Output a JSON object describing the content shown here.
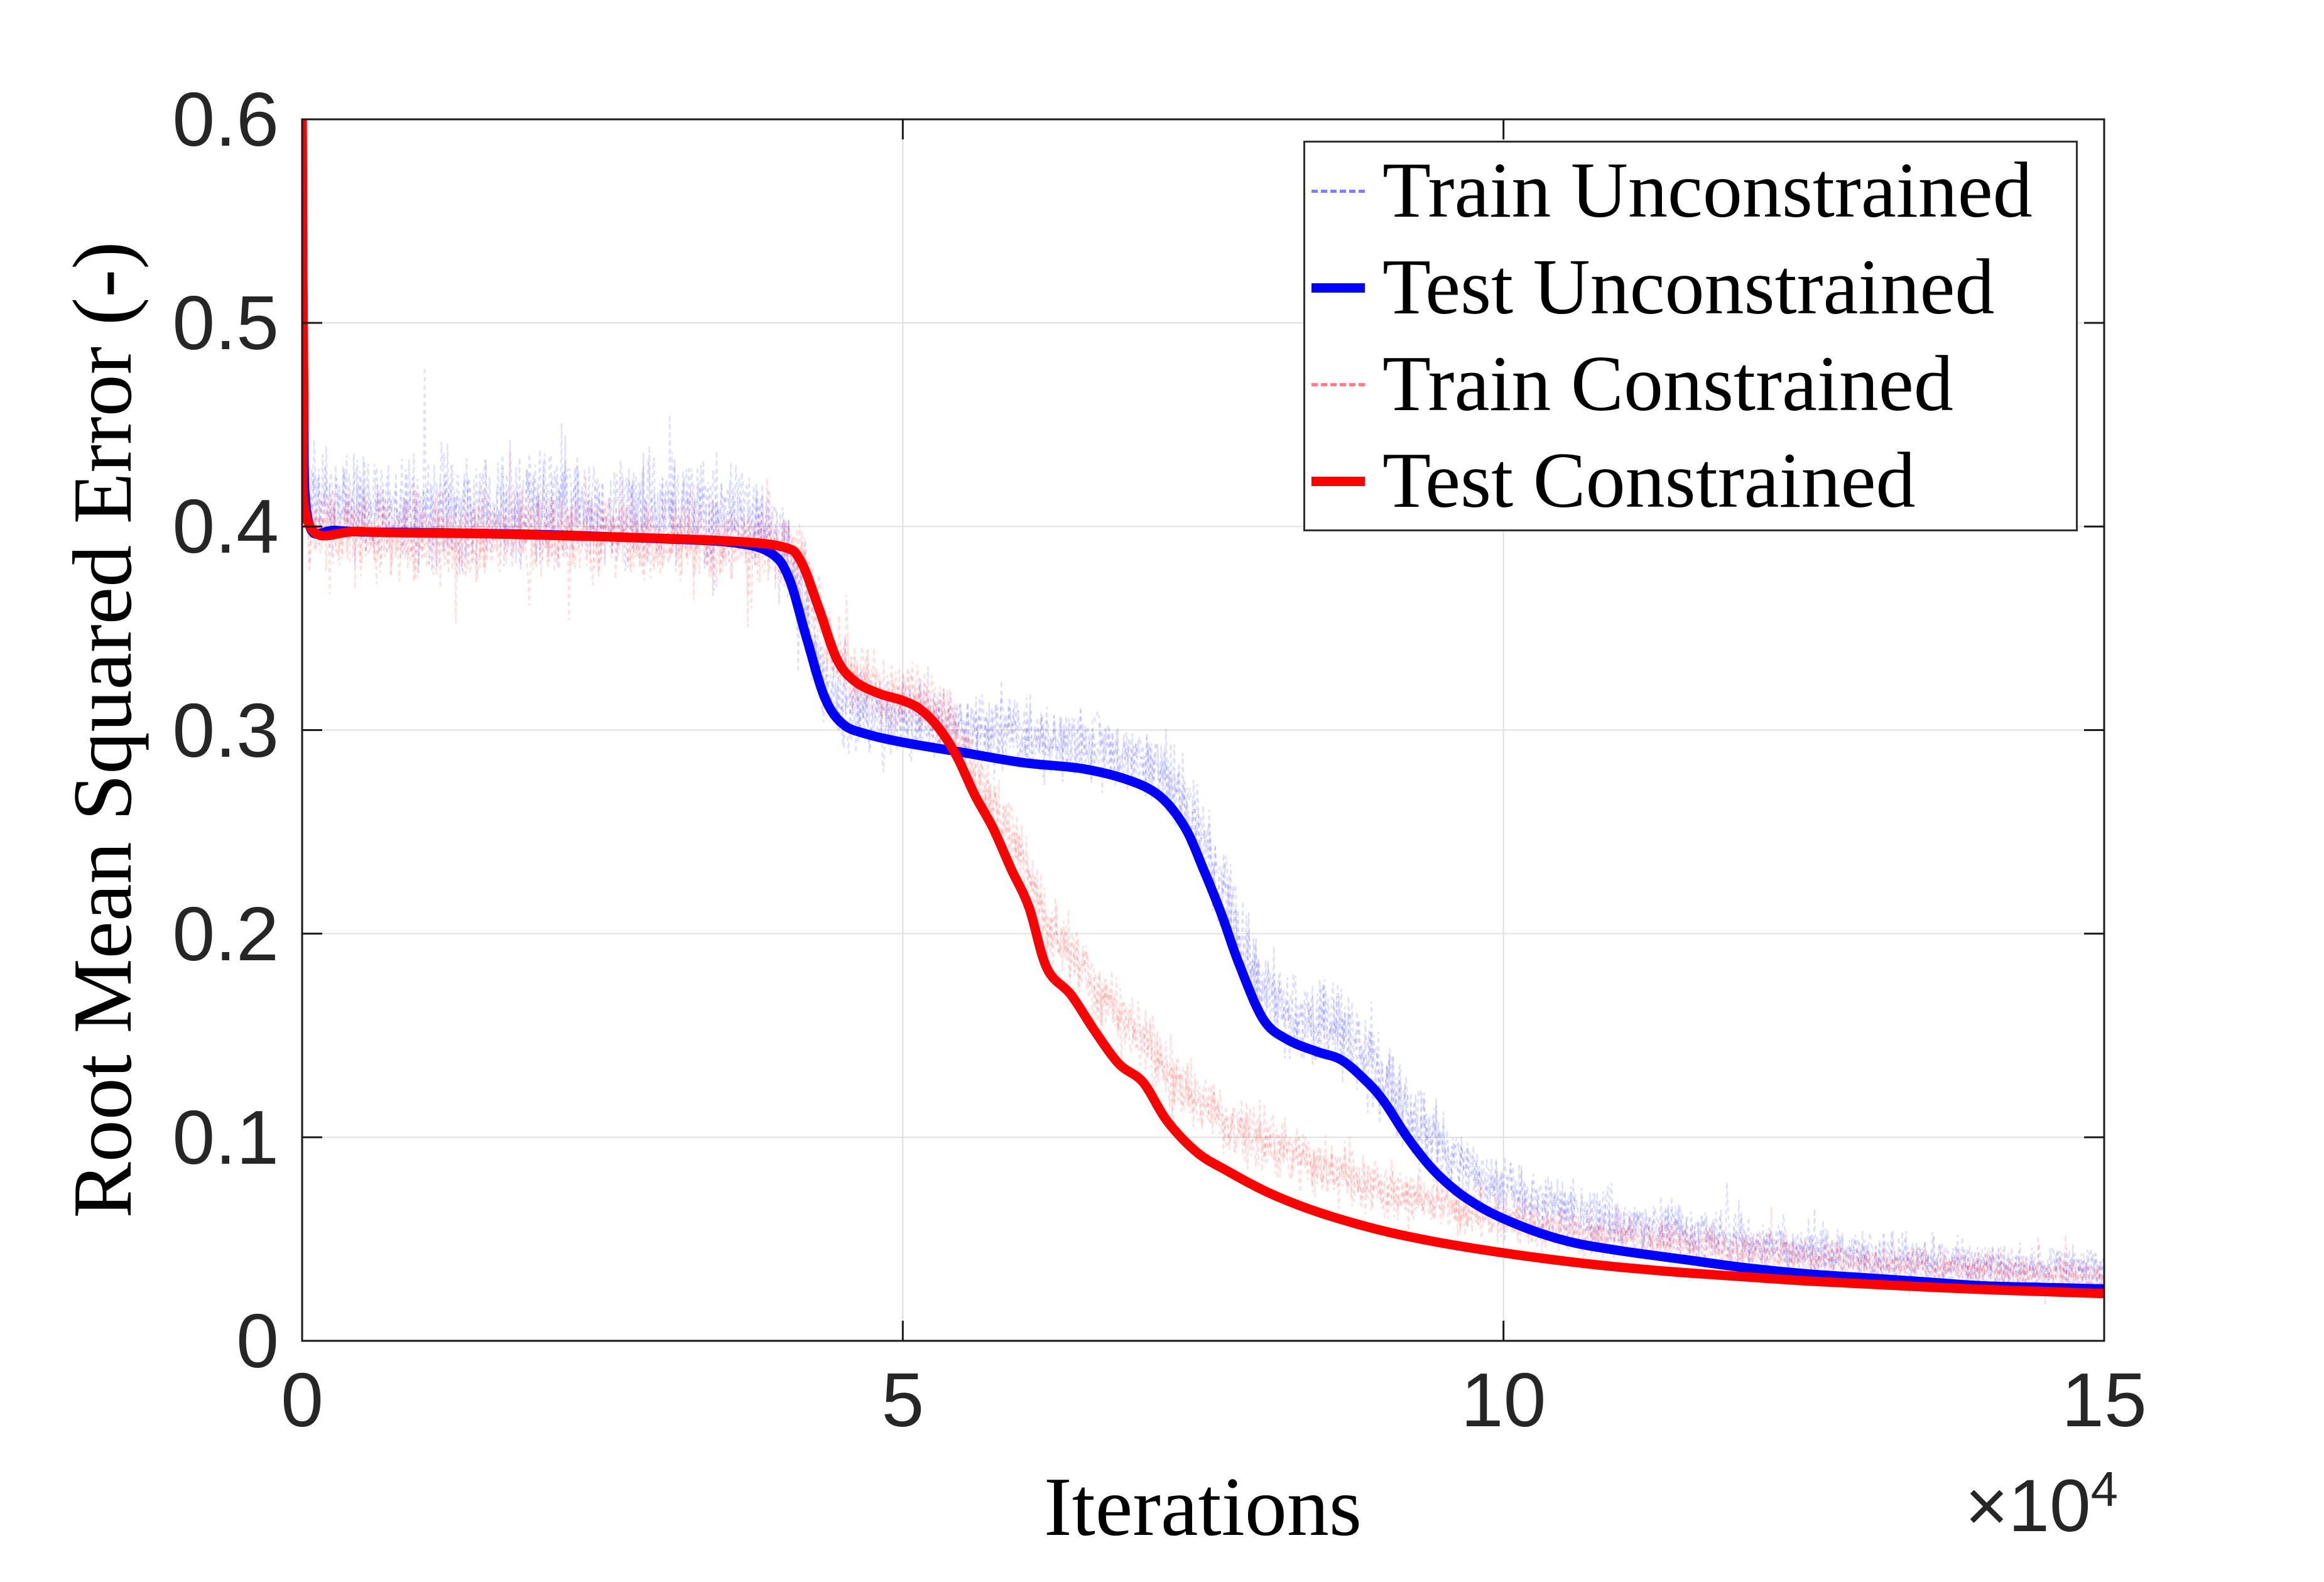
{
  "axes": {
    "xlabel": "Iterations",
    "ylabel": "Root Mean Squared Error (-)",
    "offset_label": "×10",
    "offset_exp": "4",
    "x_ticks": [
      {
        "value": 0,
        "label": "0"
      },
      {
        "value": 5,
        "label": "5"
      },
      {
        "value": 10,
        "label": "10"
      },
      {
        "value": 15,
        "label": "15"
      }
    ],
    "y_ticks": [
      {
        "value": 0,
        "label": "0"
      },
      {
        "value": 0.1,
        "label": "0.1"
      },
      {
        "value": 0.2,
        "label": "0.2"
      },
      {
        "value": 0.3,
        "label": "0.3"
      },
      {
        "value": 0.4,
        "label": "0.4"
      },
      {
        "value": 0.5,
        "label": "0.5"
      },
      {
        "value": 0.6,
        "label": "0.6"
      }
    ],
    "grid_x": [
      5,
      10
    ],
    "grid_y": [
      0.1,
      0.2,
      0.3,
      0.4,
      0.5
    ],
    "colors": {
      "spine": "#1a1a1a",
      "grid": "#e0e0e0",
      "tick_label": "#262626"
    }
  },
  "legend": {
    "entries": [
      {
        "label": "Train Unconstrained",
        "style": "dashed",
        "color": "#0000ff"
      },
      {
        "label": "Test Unconstrained",
        "style": "solid",
        "color": "#0000ff"
      },
      {
        "label": "Train Constrained",
        "style": "dashed",
        "color": "#ff0000"
      },
      {
        "label": "Test Constrained",
        "style": "solid",
        "color": "#ff0000"
      }
    ]
  },
  "chart_data": {
    "type": "line",
    "title": "",
    "xlabel": "Iterations",
    "ylabel": "Root Mean Squared Error (-)",
    "x_scale_note": "×10^4",
    "xlim": [
      0,
      15
    ],
    "ylim": [
      0,
      0.6
    ],
    "grid": true,
    "legend_position": "upper-right",
    "series": [
      {
        "name": "Train Unconstrained",
        "color": "#0000ff",
        "style": "dashed",
        "role": "noisy-band",
        "base": "Test Unconstrained",
        "alpha": 0.13,
        "seed": 11,
        "passes": 3,
        "dx": 0.01,
        "offset_keypoints": [
          [
            0,
            0.013
          ],
          [
            3.8,
            0.013
          ],
          [
            4.3,
            0.008
          ],
          [
            5,
            0.012
          ],
          [
            7,
            0.013
          ],
          [
            8,
            0.014
          ],
          [
            9,
            0.013
          ],
          [
            10,
            0.015
          ],
          [
            12,
            0.012
          ],
          [
            15,
            0.009
          ]
        ],
        "noise_amp_keypoints": [
          [
            0,
            0.02
          ],
          [
            3,
            0.021
          ],
          [
            4,
            0.017
          ],
          [
            5,
            0.014
          ],
          [
            7,
            0.014
          ],
          [
            8.5,
            0.018
          ],
          [
            10,
            0.011
          ],
          [
            12,
            0.011
          ],
          [
            15,
            0.008
          ]
        ]
      },
      {
        "name": "Test Unconstrained",
        "color": "#0000ff",
        "style": "solid",
        "role": "line",
        "x": [
          0,
          0.012,
          0.05,
          0.3,
          1,
          2,
          3,
          3.6,
          3.9,
          4.05,
          4.2,
          4.35,
          4.5,
          4.7,
          5,
          5.5,
          6,
          6.5,
          6.9,
          7.15,
          7.35,
          7.5,
          7.65,
          7.8,
          8,
          8.2,
          8.45,
          8.65,
          8.85,
          9,
          9.2,
          9.4,
          9.6,
          9.8,
          10,
          10.3,
          10.6,
          11,
          11.5,
          12,
          12.5,
          13,
          13.5,
          14,
          14.5,
          15
        ],
        "y": [
          0.6,
          0.47,
          0.403,
          0.398,
          0.397,
          0.396,
          0.394,
          0.392,
          0.387,
          0.375,
          0.345,
          0.316,
          0.303,
          0.298,
          0.294,
          0.289,
          0.284,
          0.281,
          0.275,
          0.267,
          0.252,
          0.232,
          0.21,
          0.185,
          0.158,
          0.148,
          0.142,
          0.138,
          0.128,
          0.118,
          0.1,
          0.085,
          0.074,
          0.066,
          0.06,
          0.053,
          0.048,
          0.044,
          0.04,
          0.036,
          0.033,
          0.031,
          0.029,
          0.027,
          0.0262,
          0.0255
        ]
      },
      {
        "name": "Train Constrained",
        "color": "#ff0000",
        "style": "dashed",
        "role": "noisy-band",
        "base": "Test Constrained",
        "alpha": 0.13,
        "seed": 29,
        "passes": 3,
        "dx": 0.01,
        "offset_keypoints": [
          [
            0,
            -0.002
          ],
          [
            4,
            0
          ],
          [
            5,
            0.002
          ],
          [
            5.8,
            0.015
          ],
          [
            6.5,
            0.022
          ],
          [
            7.5,
            0.025
          ],
          [
            8,
            0.024
          ],
          [
            9,
            0.02
          ],
          [
            10,
            0.017
          ],
          [
            12,
            0.012
          ],
          [
            15,
            0.008
          ]
        ],
        "noise_amp_keypoints": [
          [
            0,
            0.017
          ],
          [
            4,
            0.015
          ],
          [
            5,
            0.013
          ],
          [
            6,
            0.013
          ],
          [
            8,
            0.012
          ],
          [
            10,
            0.009
          ],
          [
            12,
            0.008
          ],
          [
            15,
            0.0065
          ]
        ]
      },
      {
        "name": "Test Constrained",
        "color": "#ff0000",
        "style": "solid",
        "role": "line",
        "x": [
          0,
          0.012,
          0.05,
          0.5,
          1.5,
          2.5,
          3.5,
          4,
          4.15,
          4.3,
          4.45,
          4.6,
          4.8,
          5,
          5.15,
          5.3,
          5.45,
          5.6,
          5.75,
          5.9,
          6.05,
          6.2,
          6.4,
          6.6,
          6.8,
          7,
          7.2,
          7.45,
          7.7,
          8,
          8.3,
          8.6,
          9,
          9.4,
          9.8,
          10.2,
          10.6,
          11,
          11.5,
          12,
          12.5,
          13,
          13.5,
          14,
          14.5,
          15
        ],
        "y": [
          0.6,
          0.47,
          0.402,
          0.3975,
          0.3965,
          0.395,
          0.393,
          0.39,
          0.383,
          0.36,
          0.335,
          0.324,
          0.318,
          0.3145,
          0.31,
          0.301,
          0.287,
          0.268,
          0.252,
          0.232,
          0.213,
          0.183,
          0.17,
          0.152,
          0.136,
          0.127,
          0.108,
          0.0925,
          0.0835,
          0.074,
          0.0665,
          0.0605,
          0.054,
          0.049,
          0.045,
          0.0415,
          0.0385,
          0.036,
          0.0335,
          0.0315,
          0.0295,
          0.028,
          0.0265,
          0.0252,
          0.0242,
          0.0232
        ]
      }
    ]
  }
}
